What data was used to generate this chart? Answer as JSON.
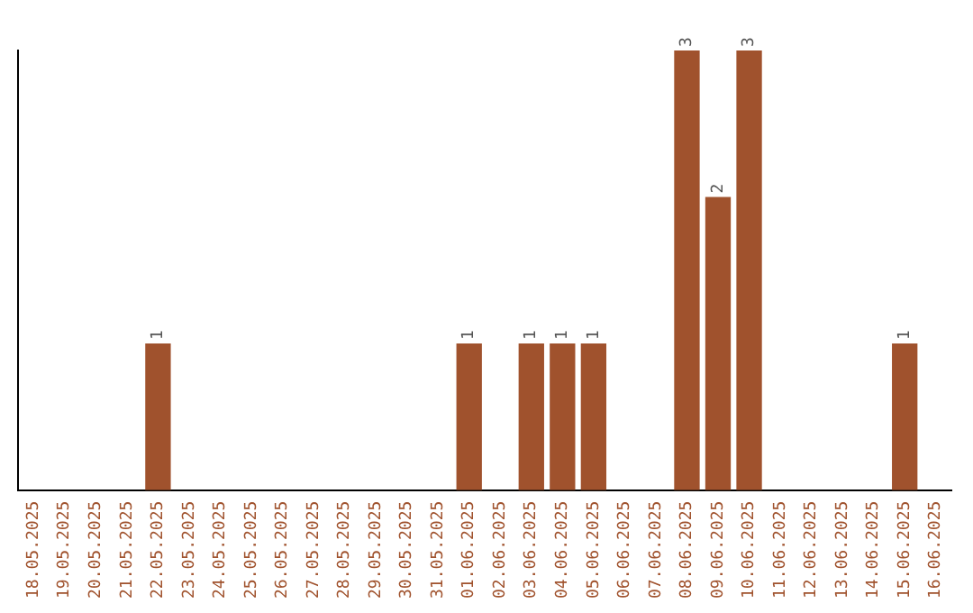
{
  "chart_data": {
    "type": "bar",
    "categories": [
      "18.05.2025",
      "19.05.2025",
      "20.05.2025",
      "21.05.2025",
      "22.05.2025",
      "23.05.2025",
      "24.05.2025",
      "25.05.2025",
      "26.05.2025",
      "27.05.2025",
      "28.05.2025",
      "29.05.2025",
      "30.05.2025",
      "31.05.2025",
      "01.06.2025",
      "02.06.2025",
      "03.06.2025",
      "04.06.2025",
      "05.06.2025",
      "06.06.2025",
      "07.06.2025",
      "08.06.2025",
      "09.06.2025",
      "10.06.2025",
      "11.06.2025",
      "12.06.2025",
      "13.06.2025",
      "14.06.2025",
      "15.06.2025",
      "16.06.2025"
    ],
    "values": [
      0,
      0,
      0,
      0,
      1,
      0,
      0,
      0,
      0,
      0,
      0,
      0,
      0,
      0,
      1,
      0,
      1,
      1,
      1,
      0,
      0,
      3,
      2,
      3,
      0,
      0,
      0,
      0,
      1,
      0
    ],
    "color": "#a0522d",
    "value_labels": [
      null,
      null,
      null,
      null,
      "1",
      null,
      null,
      null,
      null,
      null,
      null,
      null,
      null,
      null,
      "1",
      null,
      "1",
      "1",
      "1",
      null,
      null,
      "3",
      "2",
      "3",
      null,
      null,
      null,
      null,
      "1",
      null
    ],
    "grid": false,
    "legend": false,
    "tick_labels": "x"
  }
}
